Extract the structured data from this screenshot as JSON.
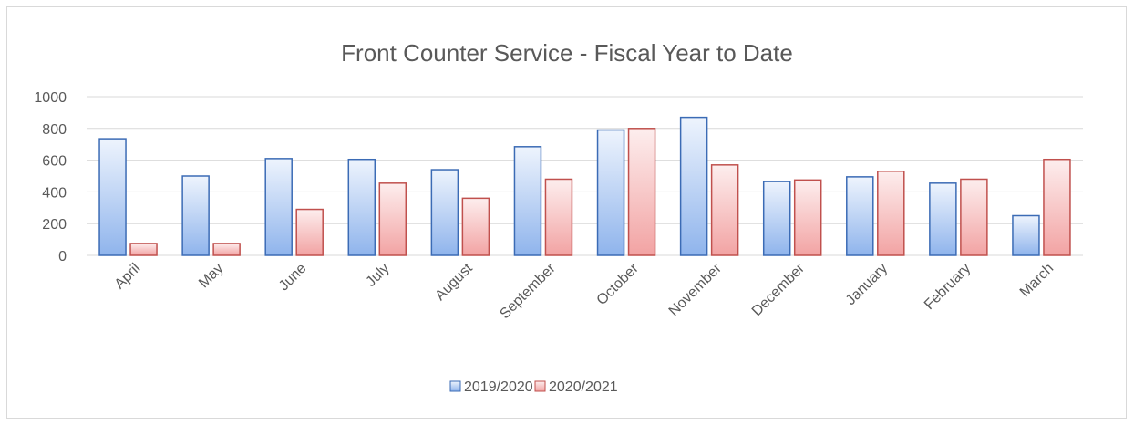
{
  "chart_data": {
    "type": "bar",
    "title": "Front Counter Service - Fiscal Year to Date",
    "xlabel": "",
    "ylabel": "",
    "ylim": [
      0,
      1000
    ],
    "yticks": [
      0,
      200,
      400,
      600,
      800,
      1000
    ],
    "grid": true,
    "legend_position": "bottom",
    "categories": [
      "April",
      "May",
      "June",
      "July",
      "August",
      "September",
      "October",
      "November",
      "December",
      "January",
      "February",
      "March"
    ],
    "series": [
      {
        "name": "2019/2020",
        "color": "#5b8fd6",
        "values": [
          735,
          500,
          610,
          605,
          540,
          685,
          790,
          870,
          465,
          495,
          455,
          250
        ]
      },
      {
        "name": "2020/2021",
        "color": "#e06666",
        "values": [
          75,
          75,
          290,
          455,
          360,
          480,
          800,
          570,
          475,
          530,
          480,
          605
        ]
      }
    ]
  }
}
